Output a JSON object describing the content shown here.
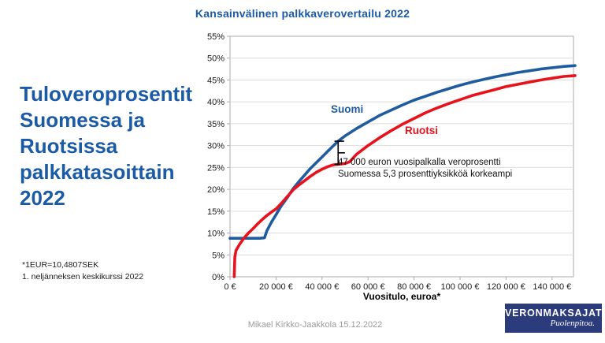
{
  "header": {
    "title": "Kansainvälinen palkkaverovertailu 2022"
  },
  "left_panel": {
    "heading_lines": [
      "Tuloveroprosentit",
      "Suomessa ja",
      "Ruotsissa",
      "palkkatasoittain",
      "2022"
    ],
    "footnote_lines": [
      "*1EUR=10,4807SEK",
      "1. neljänneksen keskikurssi 2022"
    ]
  },
  "chart_data": {
    "type": "line",
    "title": "",
    "xlabel": "Vuositulo, euroa*",
    "ylabel": "",
    "xlim": [
      0,
      150000
    ],
    "ylim": [
      0,
      55
    ],
    "ytick_step": 5,
    "ytick_suffix": "%",
    "xticks": [
      0,
      20000,
      40000,
      60000,
      80000,
      100000,
      120000,
      140000
    ],
    "xtick_labels": [
      "0 €",
      "20 000 €",
      "40 000 €",
      "60 000 €",
      "80 000 €",
      "100 000 €",
      "120 000 €",
      "140 000 €"
    ],
    "grid": true,
    "legend_position": "inline-labels",
    "series": [
      {
        "name": "Suomi",
        "color": "#1F5C9F",
        "points": [
          [
            0,
            8.8
          ],
          [
            13000,
            8.8
          ],
          [
            15000,
            8.9
          ],
          [
            16000,
            10.5
          ],
          [
            18000,
            12.5
          ],
          [
            20000,
            14.2
          ],
          [
            22000,
            16.0
          ],
          [
            25000,
            18.2
          ],
          [
            27500,
            20.2
          ],
          [
            30000,
            21.8
          ],
          [
            32500,
            23.3
          ],
          [
            35000,
            24.8
          ],
          [
            37500,
            26.1
          ],
          [
            40000,
            27.4
          ],
          [
            42500,
            28.7
          ],
          [
            45000,
            30.0
          ],
          [
            47000,
            31.0
          ],
          [
            50000,
            32.2
          ],
          [
            55000,
            33.9
          ],
          [
            60000,
            35.4
          ],
          [
            65000,
            36.9
          ],
          [
            70000,
            38.1
          ],
          [
            75000,
            39.3
          ],
          [
            80000,
            40.4
          ],
          [
            85000,
            41.3
          ],
          [
            90000,
            42.2
          ],
          [
            95000,
            43.0
          ],
          [
            100000,
            43.8
          ],
          [
            105000,
            44.5
          ],
          [
            110000,
            45.1
          ],
          [
            115000,
            45.7
          ],
          [
            120000,
            46.2
          ],
          [
            125000,
            46.7
          ],
          [
            130000,
            47.1
          ],
          [
            135000,
            47.5
          ],
          [
            140000,
            47.8
          ],
          [
            145000,
            48.1
          ],
          [
            150000,
            48.3
          ]
        ]
      },
      {
        "name": "Ruotsi",
        "color": "#E8121C",
        "points": [
          [
            1800,
            0
          ],
          [
            2100,
            4.5
          ],
          [
            2600,
            6.0
          ],
          [
            4000,
            7.3
          ],
          [
            6000,
            8.8
          ],
          [
            8000,
            10.0
          ],
          [
            10000,
            11.0
          ],
          [
            12000,
            12.1
          ],
          [
            14000,
            13.1
          ],
          [
            16000,
            14.0
          ],
          [
            18000,
            14.8
          ],
          [
            20000,
            15.5
          ],
          [
            22000,
            16.6
          ],
          [
            25000,
            18.4
          ],
          [
            27500,
            19.9
          ],
          [
            30000,
            21.0
          ],
          [
            32500,
            22.0
          ],
          [
            35000,
            23.0
          ],
          [
            37500,
            23.9
          ],
          [
            40000,
            24.6
          ],
          [
            42500,
            25.2
          ],
          [
            45000,
            25.6
          ],
          [
            47000,
            25.7
          ],
          [
            50000,
            25.9
          ],
          [
            52000,
            26.3
          ],
          [
            55000,
            28.0
          ],
          [
            60000,
            30.0
          ],
          [
            65000,
            31.8
          ],
          [
            70000,
            33.4
          ],
          [
            75000,
            34.9
          ],
          [
            80000,
            36.2
          ],
          [
            85000,
            37.5
          ],
          [
            90000,
            38.6
          ],
          [
            95000,
            39.6
          ],
          [
            100000,
            40.5
          ],
          [
            105000,
            41.4
          ],
          [
            110000,
            42.1
          ],
          [
            115000,
            42.8
          ],
          [
            120000,
            43.5
          ],
          [
            125000,
            44.0
          ],
          [
            130000,
            44.5
          ],
          [
            135000,
            45.0
          ],
          [
            140000,
            45.4
          ],
          [
            145000,
            45.8
          ],
          [
            150000,
            46.0
          ]
        ]
      }
    ],
    "annotations": [
      "47 000 euron vuosipalkalla veroprosentti Suomessa 5,3 prosenttiyksikköä korkeampi"
    ]
  },
  "annotation": {
    "line1": "47 000 euron vuosipalkalla veroprosentti",
    "line2": "Suomessa 5,3 prosenttiyksikköä korkeampi",
    "marker": {
      "x": 47000,
      "suomi_pct": 31.0,
      "ruotsi_pct": 25.7
    }
  },
  "footer": {
    "credit": "Mikael Kirkko-Jaakkola  15.12.2022"
  },
  "logo": {
    "name": "VERONMAKSAJAT",
    "tagline": "Puolenpitoa."
  },
  "colors": {
    "title_blue": "#1B5AA5",
    "suomi": "#1F5C9F",
    "ruotsi": "#E8121C",
    "logo_navy": "#2B3B7C",
    "gridline": "#DCDCDC"
  }
}
